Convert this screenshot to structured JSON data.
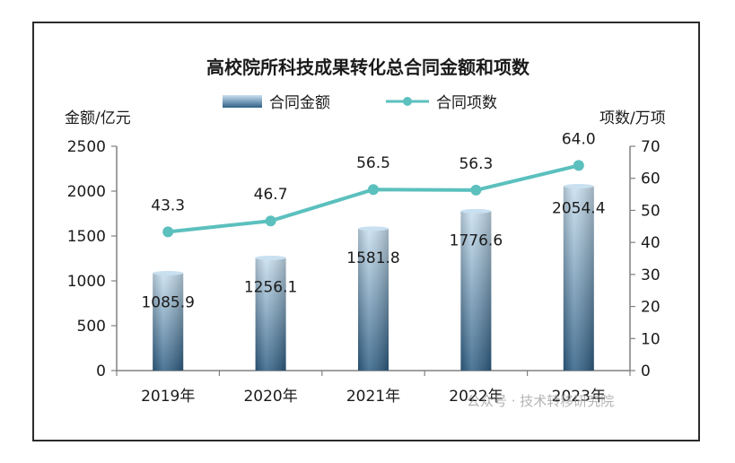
{
  "chart_data": {
    "type": "bar",
    "title": "高校院所科技成果转化总合同金额和项数",
    "categories": [
      "2019年",
      "2020年",
      "2021年",
      "2022年",
      "2023年"
    ],
    "series": [
      {
        "name": "合同金额",
        "type": "bar",
        "axis": "left",
        "values": [
          1085.9,
          1256.1,
          1581.8,
          1776.6,
          2054.4
        ]
      },
      {
        "name": "合同项数",
        "type": "line",
        "axis": "right",
        "values": [
          43.3,
          46.7,
          56.5,
          56.3,
          64.0
        ]
      }
    ],
    "bar_labels": [
      "1085.9",
      "1256.1",
      "1581.8",
      "1776.6",
      "2054.4"
    ],
    "line_labels": [
      "43.3",
      "46.7",
      "56.5",
      "56.3",
      "64.0"
    ],
    "ylabel_left": "金额/亿元",
    "ylabel_right": "项数/万项",
    "ylim_left": [
      0,
      2500
    ],
    "ylim_right": [
      0,
      70
    ],
    "yticks_left": [
      "0",
      "500",
      "1000",
      "1500",
      "2000",
      "2500"
    ],
    "yticks_right": [
      "0",
      "10",
      "20",
      "30",
      "40",
      "50",
      "60",
      "70"
    ],
    "legend_position": "top",
    "grid": false,
    "colors": {
      "bar_dark": "#2f5f85",
      "bar_light": "#c9e0f0",
      "line": "#5bc0be",
      "axis": "#808080"
    }
  },
  "watermark": "公众号 · 技术转移研究院"
}
